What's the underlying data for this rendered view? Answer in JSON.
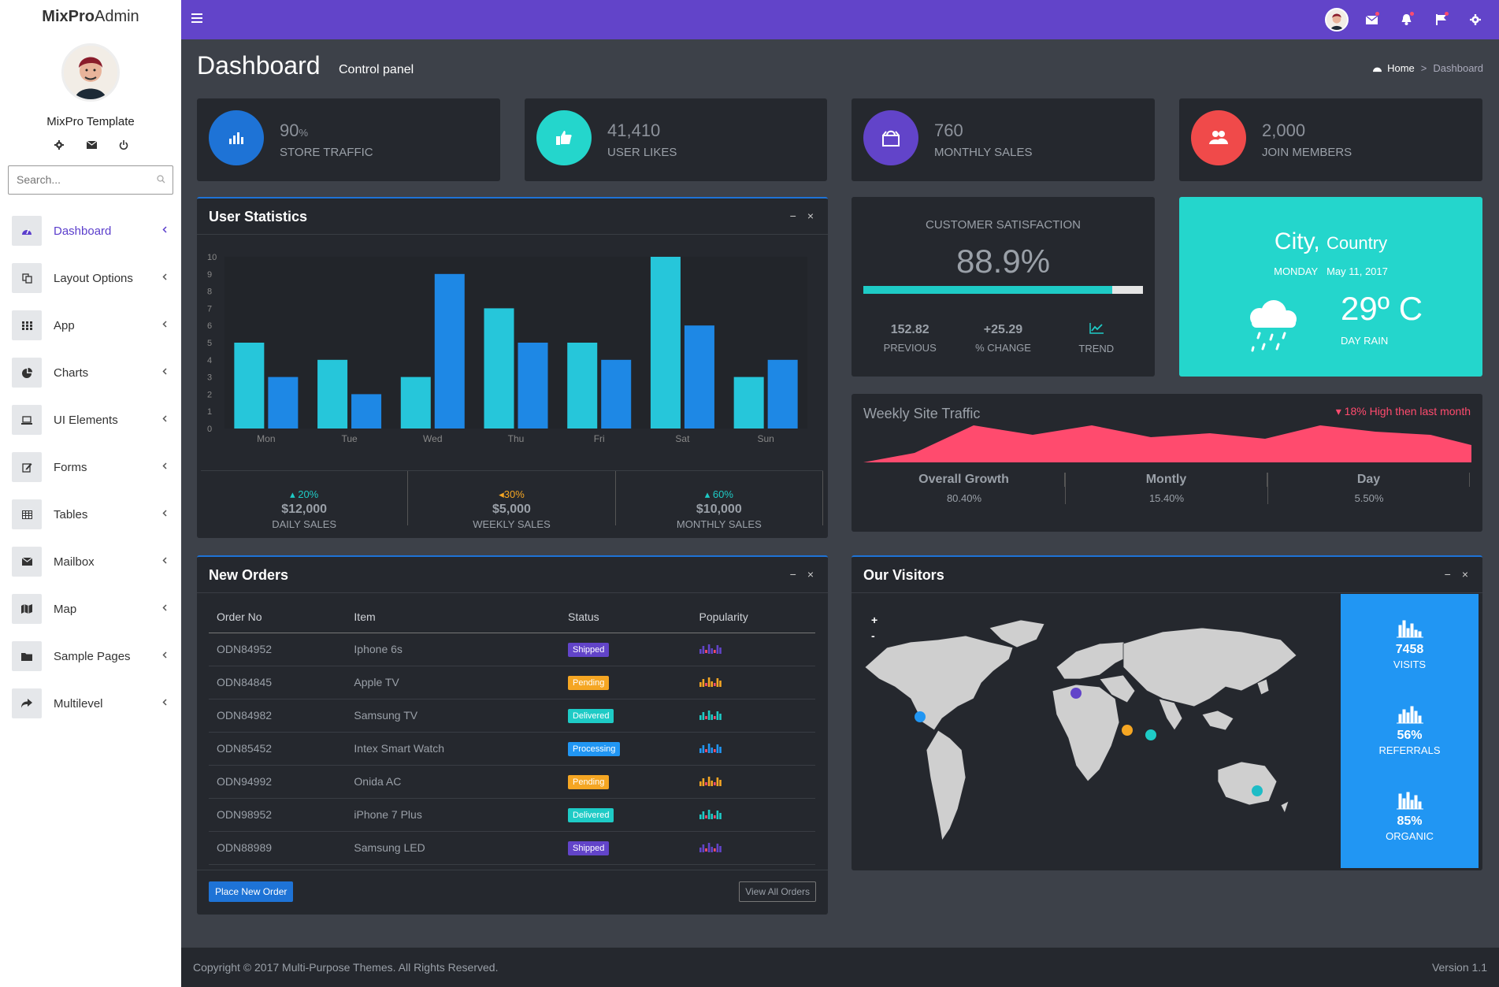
{
  "brand": {
    "bold": "MixPro",
    "light": "Admin"
  },
  "user": {
    "name": "MixPro Template"
  },
  "search": {
    "placeholder": "Search..."
  },
  "sidebar": {
    "items": [
      {
        "label": "Dashboard",
        "icon": "dashboard-icon"
      },
      {
        "label": "Layout Options",
        "icon": "copy-icon"
      },
      {
        "label": "App",
        "icon": "grid-icon"
      },
      {
        "label": "Charts",
        "icon": "pie-chart-icon"
      },
      {
        "label": "UI Elements",
        "icon": "laptop-icon"
      },
      {
        "label": "Forms",
        "icon": "edit-icon"
      },
      {
        "label": "Tables",
        "icon": "table-icon"
      },
      {
        "label": "Mailbox",
        "icon": "envelope-icon"
      },
      {
        "label": "Map",
        "icon": "map-icon"
      },
      {
        "label": "Sample Pages",
        "icon": "folder-icon"
      },
      {
        "label": "Multilevel",
        "icon": "share-icon"
      }
    ]
  },
  "page": {
    "title": "Dashboard",
    "subtitle": "Control panel",
    "breadcrumb": {
      "home": "Home",
      "sep": ">",
      "current": "Dashboard"
    }
  },
  "stats": [
    {
      "value": "90",
      "unit": "%",
      "label": "STORE TRAFFIC",
      "color": "#1e73d6"
    },
    {
      "value": "41,410",
      "unit": "",
      "label": "USER LIKES",
      "color": "#24d6cc"
    },
    {
      "value": "760",
      "unit": "",
      "label": "MONTHLY SALES",
      "color": "#6244c9"
    },
    {
      "value": "2,000",
      "unit": "",
      "label": "JOIN MEMBERS",
      "color": "#f04a4a"
    }
  ],
  "user_statistics": {
    "title": "User Statistics",
    "sales": [
      {
        "pct": "20%",
        "dir": "up",
        "amount": "$12,000",
        "label": "DAILY SALES",
        "color": "#1ecbc6"
      },
      {
        "pct": "30%",
        "dir": "left",
        "amount": "$5,000",
        "label": "WEEKLY SALES",
        "color": "#f5a623"
      },
      {
        "pct": "60%",
        "dir": "up",
        "amount": "$10,000",
        "label": "MONTHLY SALES",
        "color": "#1ecbc6"
      }
    ]
  },
  "chart_data": {
    "type": "bar",
    "categories": [
      "Mon",
      "Tue",
      "Wed",
      "Thu",
      "Fri",
      "Sat",
      "Sun"
    ],
    "series": [
      {
        "values": [
          5,
          4,
          3,
          7,
          5,
          10,
          3
        ],
        "color": "#26c6da"
      },
      {
        "values": [
          3,
          2,
          9,
          5,
          4,
          6,
          4
        ],
        "color": "#1e88e5"
      }
    ],
    "ylim": [
      0,
      10
    ],
    "yticks": [
      "0",
      "1",
      "2",
      "3",
      "4",
      "5",
      "6",
      "7",
      "8",
      "9",
      "10"
    ]
  },
  "satisfaction": {
    "title": "CUSTOMER SATISFACTION",
    "value": "88.9%",
    "fill": 0.889,
    "previous": "152.82",
    "previous_label": "PREVIOUS",
    "change": "+25.29",
    "change_label": "% CHANGE",
    "trend_label": "TREND"
  },
  "weather": {
    "city": "City,",
    "country": "Country",
    "day": "MONDAY",
    "date": "May 11, 2017",
    "temp": "29º C",
    "desc": "DAY RAIN"
  },
  "traffic": {
    "title": "Weekly Site Traffic",
    "note": "18% High then last month",
    "cols": [
      {
        "label": "Overall Growth",
        "value": "80.40%"
      },
      {
        "label": "Montly",
        "value": "15.40%"
      },
      {
        "label": "Day",
        "value": "5.50%"
      }
    ]
  },
  "orders": {
    "title": "New Orders",
    "headers": [
      "Order No",
      "Item",
      "Status",
      "Popularity"
    ],
    "rows": [
      {
        "no": "ODN84952",
        "item": "Iphone 6s",
        "status": "Shipped",
        "color": "#6244c9"
      },
      {
        "no": "ODN84845",
        "item": "Apple TV",
        "status": "Pending",
        "color": "#f5a623"
      },
      {
        "no": "ODN84982",
        "item": "Samsung TV",
        "status": "Delivered",
        "color": "#1ecbc6"
      },
      {
        "no": "ODN85452",
        "item": "Intex Smart Watch",
        "status": "Processing",
        "color": "#2196f3"
      },
      {
        "no": "ODN94992",
        "item": "Onida AC",
        "status": "Pending",
        "color": "#f5a623"
      },
      {
        "no": "ODN98952",
        "item": "iPhone 7 Plus",
        "status": "Delivered",
        "color": "#1ecbc6"
      },
      {
        "no": "ODN88989",
        "item": "Samsung LED",
        "status": "Shipped",
        "color": "#6244c9"
      }
    ],
    "place_label": "Place New Order",
    "view_label": "View All Orders"
  },
  "visitors": {
    "title": "Our Visitors",
    "zoom_in": "+",
    "zoom_out": "-",
    "stats": [
      {
        "value": "7458",
        "label": "VISITS"
      },
      {
        "value": "56%",
        "label": "REFERRALS"
      },
      {
        "value": "85%",
        "label": "ORGANIC"
      }
    ]
  },
  "footer": {
    "copyright": "Copyright © 2017 Multi-Purpose Themes. All Rights Reserved.",
    "version": "Version 1.1"
  }
}
